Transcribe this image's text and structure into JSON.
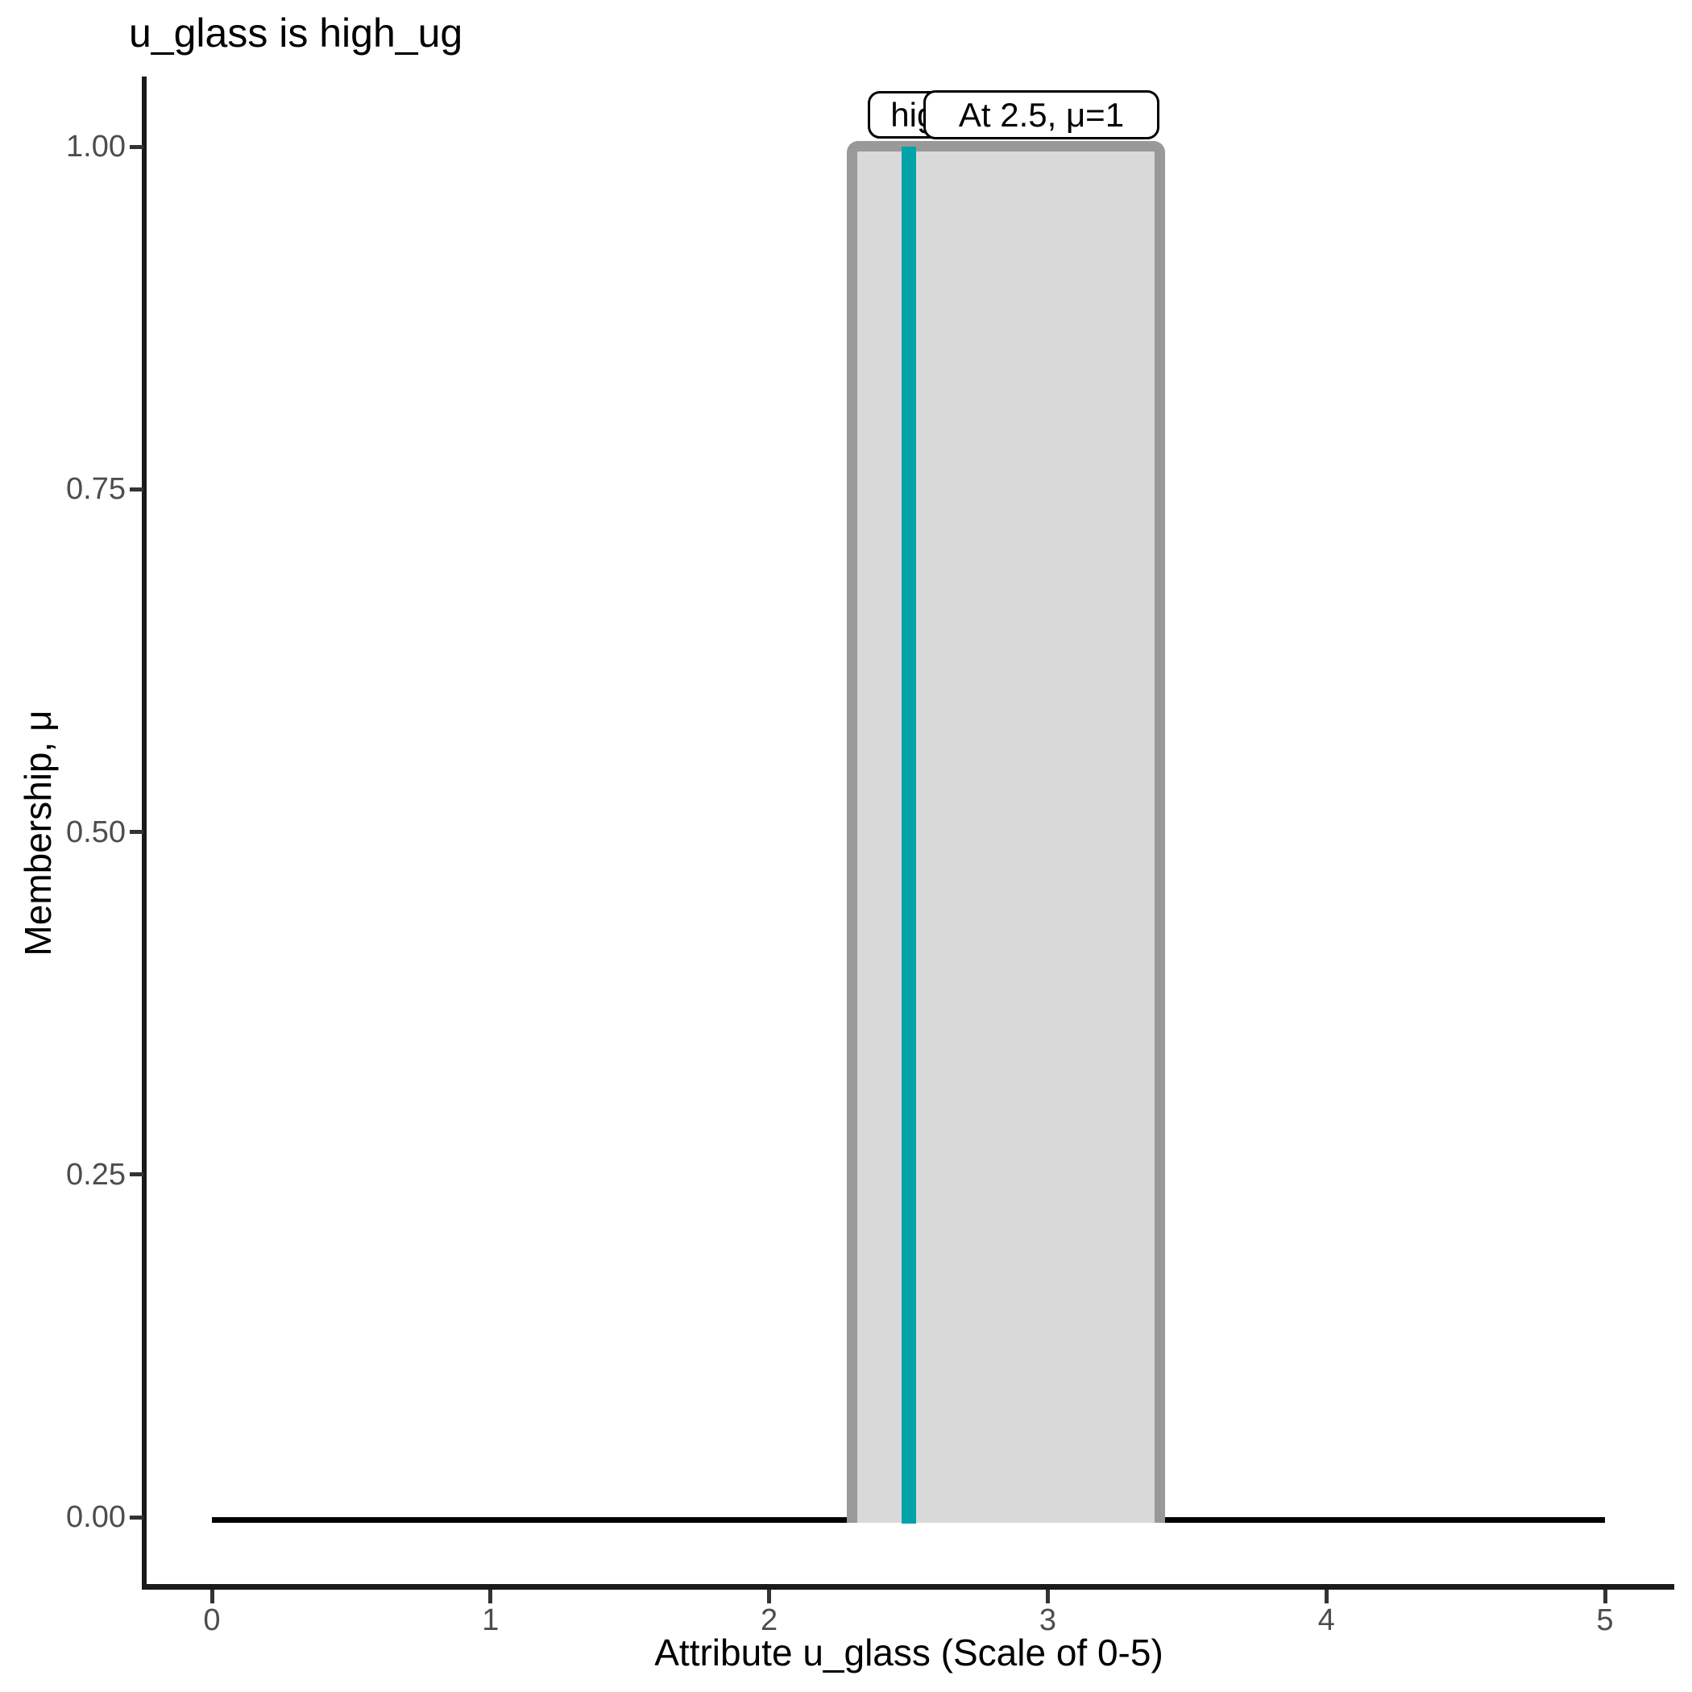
{
  "title": "u_glass is high_ug",
  "chart_data": {
    "type": "area",
    "subtype": "fuzzy-membership-function",
    "title": "u_glass is high_ug",
    "xlabel": "Attribute u_glass (Scale of 0-5)",
    "ylabel": "Membership, μ",
    "xlim": [
      0,
      5
    ],
    "ylim": [
      0,
      1
    ],
    "x_ticks": [
      "0",
      "1",
      "2",
      "3",
      "4",
      "5"
    ],
    "y_ticks": [
      "0.00",
      "0.25",
      "0.50",
      "0.75",
      "1.00"
    ],
    "grid": false,
    "legend_position": "none",
    "membership_function": {
      "name": "high_ug",
      "shape": "rectangle",
      "x_from": 2.3,
      "x_to": 3.4,
      "mu_max": 1.0,
      "fill_color": "#d9d9d9",
      "border_color": "#999999"
    },
    "baseline": {
      "mu": 0,
      "x_from": 0,
      "x_to": 5,
      "color": "#000000"
    },
    "marker": {
      "x": 2.5,
      "mu": 1,
      "color": "#00a3a8",
      "label": "At 2.5, μ=1",
      "set_label": "high_ug"
    }
  },
  "annotations": {
    "set_label_box": "high_ug",
    "value_label_box": "At 2.5, μ=1"
  }
}
